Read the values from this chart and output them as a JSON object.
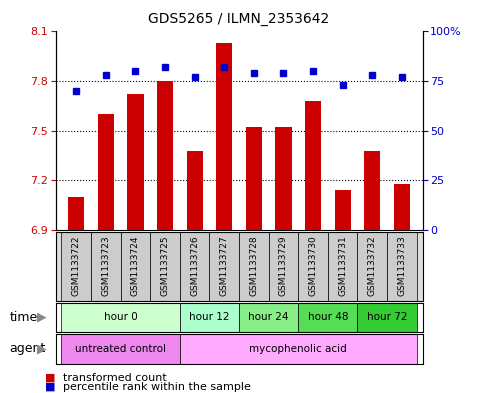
{
  "title": "GDS5265 / ILMN_2353642",
  "samples": [
    "GSM1133722",
    "GSM1133723",
    "GSM1133724",
    "GSM1133725",
    "GSM1133726",
    "GSM1133727",
    "GSM1133728",
    "GSM1133729",
    "GSM1133730",
    "GSM1133731",
    "GSM1133732",
    "GSM1133733"
  ],
  "transformed_count": [
    7.1,
    7.6,
    7.72,
    7.8,
    7.38,
    8.03,
    7.52,
    7.52,
    7.68,
    7.14,
    7.38,
    7.18
  ],
  "percentile_rank": [
    70,
    78,
    80,
    82,
    77,
    82,
    79,
    79,
    80,
    73,
    78,
    77
  ],
  "bar_color": "#cc0000",
  "dot_color": "#0000cc",
  "ylim_left": [
    6.9,
    8.1
  ],
  "ylim_right": [
    0,
    100
  ],
  "yticks_left": [
    6.9,
    7.2,
    7.5,
    7.8,
    8.1
  ],
  "yticks_right": [
    0,
    25,
    50,
    75,
    100
  ],
  "ytick_labels_right": [
    "0",
    "25",
    "50",
    "75",
    "100%"
  ],
  "grid_lines": [
    7.2,
    7.5,
    7.8
  ],
  "time_groups": [
    {
      "label": "hour 0",
      "start": 0,
      "end": 3,
      "color": "#ccffcc"
    },
    {
      "label": "hour 12",
      "start": 4,
      "end": 5,
      "color": "#aaffcc"
    },
    {
      "label": "hour 24",
      "start": 6,
      "end": 7,
      "color": "#88ee88"
    },
    {
      "label": "hour 48",
      "start": 8,
      "end": 9,
      "color": "#55dd55"
    },
    {
      "label": "hour 72",
      "start": 10,
      "end": 11,
      "color": "#33cc33"
    }
  ],
  "agent_groups": [
    {
      "label": "untreated control",
      "start": 0,
      "end": 3,
      "color": "#ee88ee"
    },
    {
      "label": "mycophenolic acid",
      "start": 4,
      "end": 11,
      "color": "#ffaaff"
    }
  ],
  "legend_bar_label": "transformed count",
  "legend_dot_label": "percentile rank within the sample",
  "time_label": "time",
  "agent_label": "agent",
  "bar_color_label": "#cc0000",
  "dot_color_label": "#0000cc",
  "left_tick_color": "#cc0000",
  "right_tick_color": "#0000cc",
  "bar_width": 0.55,
  "bar_bottom": 6.9,
  "sample_box_color": "#cccccc"
}
